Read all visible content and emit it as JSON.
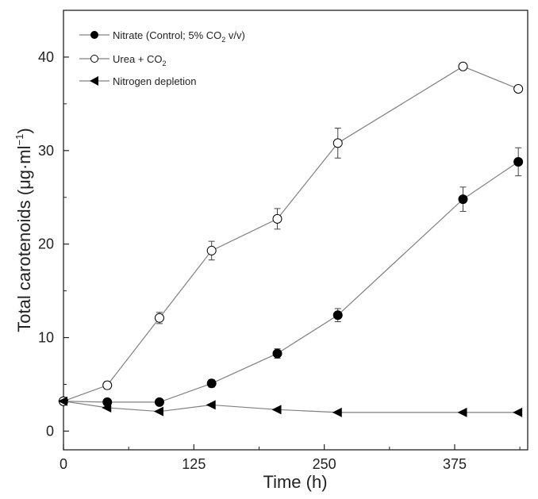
{
  "chart_data": {
    "type": "line",
    "xlabel": "Time (h)",
    "ylabel": {
      "main": "Total carotenoids (μg·ml",
      "sup": "−1",
      "close": ")"
    },
    "xlim": [
      0,
      445
    ],
    "ylim": [
      -2,
      45
    ],
    "xticks": [
      0,
      125,
      250,
      375
    ],
    "yticks": [
      0,
      10,
      20,
      30,
      40
    ],
    "series": [
      {
        "name": {
          "main": "Nitrate (Control; 5% CO",
          "sub": "2",
          "tail": " v/v)"
        },
        "marker": "filled-circle",
        "color": "#000000",
        "x": [
          0,
          42,
          92,
          142,
          205,
          263,
          383,
          436
        ],
        "y": [
          3.2,
          3.1,
          3.1,
          5.1,
          8.3,
          12.4,
          24.8,
          28.8
        ],
        "err": [
          0,
          0.3,
          0.3,
          0.4,
          0.5,
          0.7,
          1.3,
          1.5
        ]
      },
      {
        "name": {
          "main": "Urea + CO",
          "sub": "2",
          "tail": ""
        },
        "marker": "open-circle",
        "color": "#ffffff",
        "x": [
          0,
          42,
          92,
          142,
          205,
          263,
          383,
          436
        ],
        "y": [
          3.2,
          4.9,
          12.1,
          19.3,
          22.7,
          30.8,
          39.0,
          36.6
        ],
        "err": [
          0,
          0.4,
          0.6,
          1.0,
          1.1,
          1.6,
          0,
          0
        ]
      },
      {
        "name": {
          "main": "Nitrogen depletion",
          "sub": "",
          "tail": ""
        },
        "marker": "left-triangle",
        "color": "#000000",
        "x": [
          0,
          42,
          92,
          142,
          205,
          263,
          383,
          436
        ],
        "y": [
          3.2,
          2.5,
          2.1,
          2.8,
          2.3,
          2.0,
          2.0,
          2.0
        ],
        "err": [
          0,
          0,
          0,
          0,
          0,
          0,
          0,
          0
        ]
      }
    ],
    "legend_position": "top-left",
    "grid": false
  }
}
